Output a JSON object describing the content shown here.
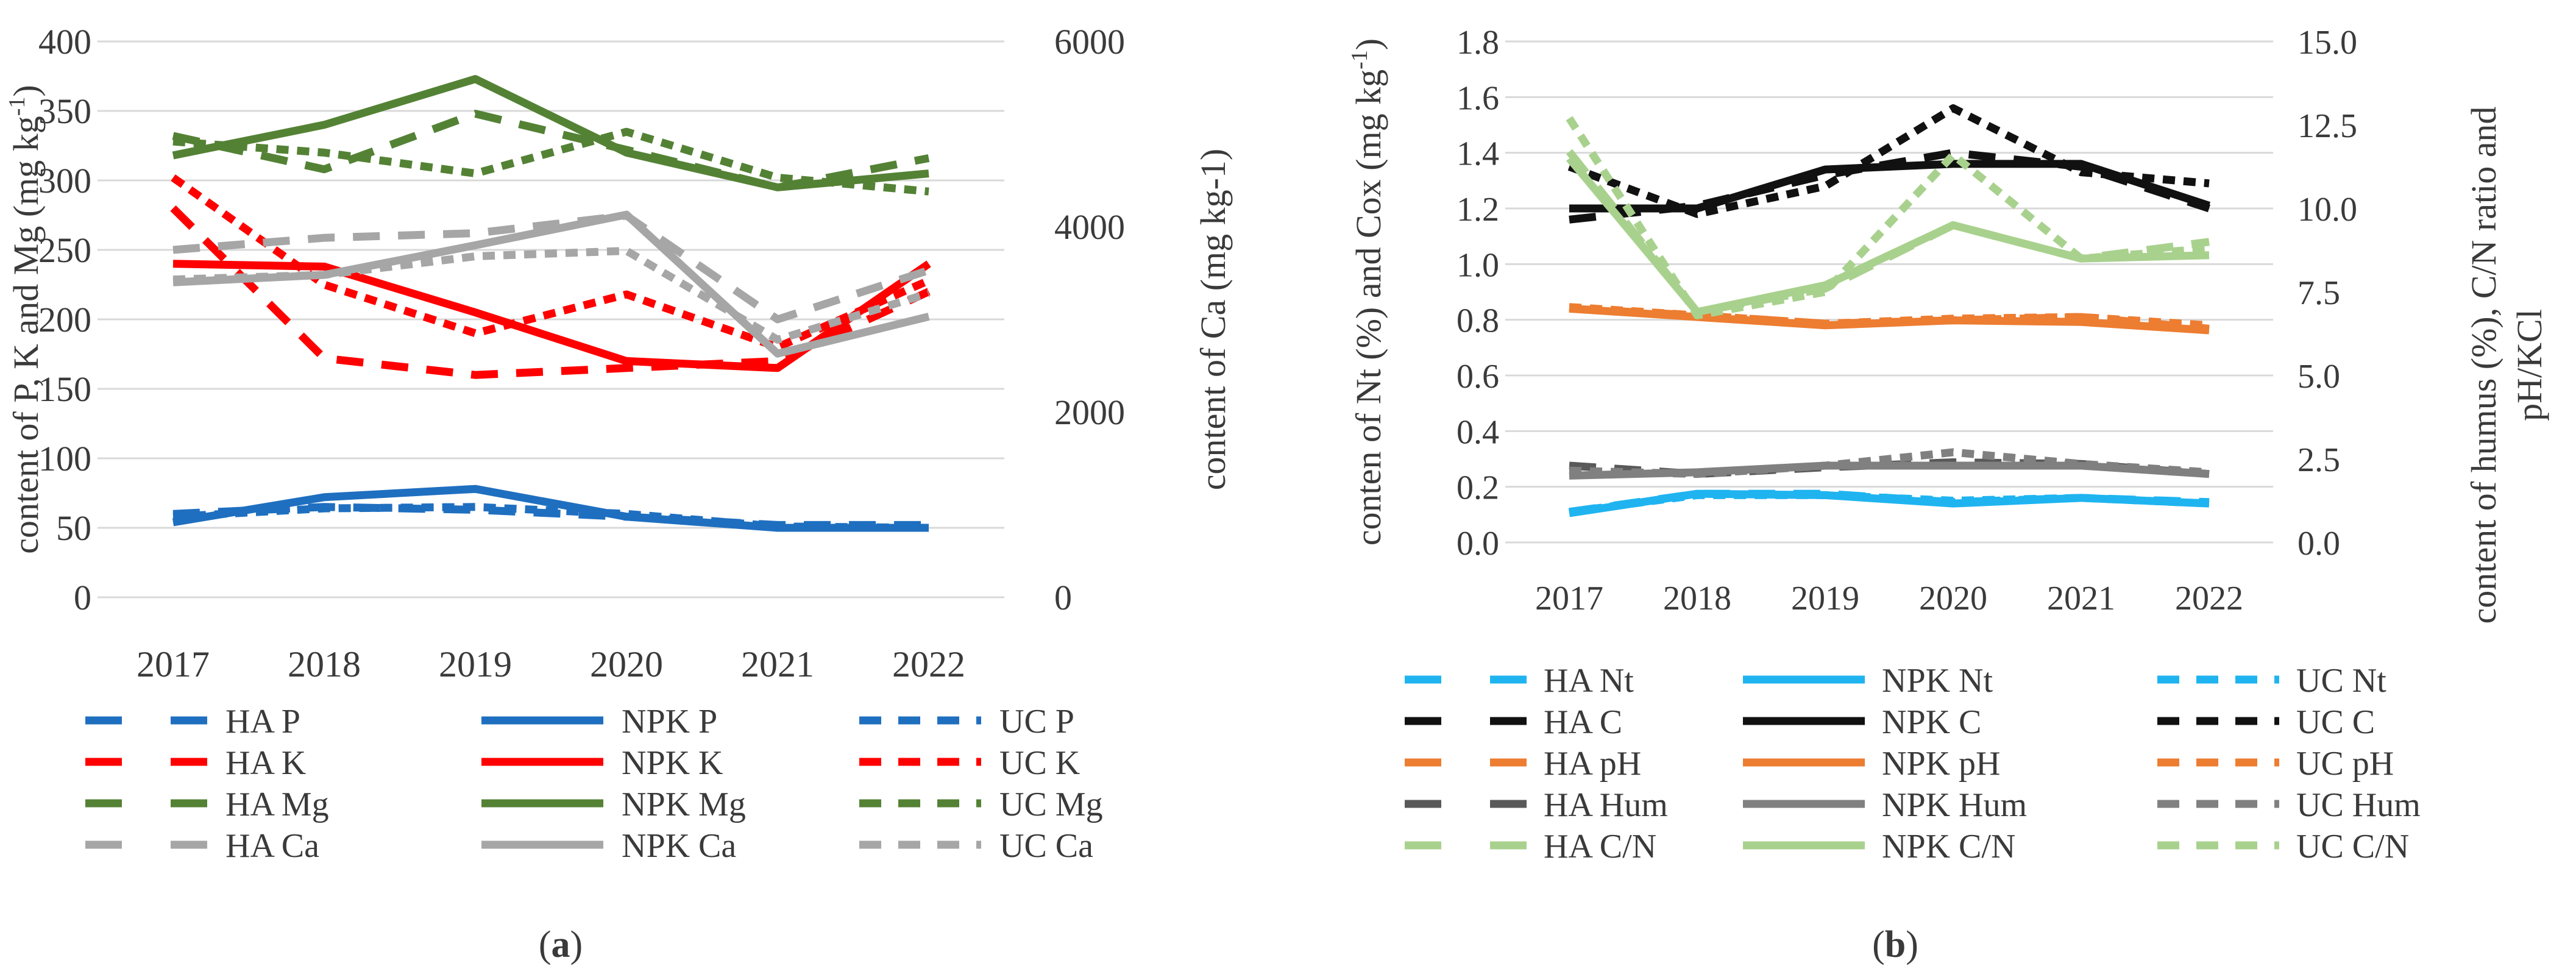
{
  "chart_data": [
    {
      "type": "line",
      "panel_label": "(a)",
      "categories": [
        "2017",
        "2018",
        "2019",
        "2020",
        "2021",
        "2022"
      ],
      "ylabel": "content of P, K and  Mg (mg kg-1)",
      "ylabel_base": "content of P, K and  Mg (mg kg",
      "ylabel_sup": "-1",
      "ylabel_end": ")",
      "y2label": "content of Ca (mg kg-1)",
      "ylim": [
        0,
        400
      ],
      "y_ticks": [
        "0",
        "50",
        "100",
        "150",
        "200",
        "250",
        "300",
        "350",
        "400"
      ],
      "y2lim": [
        0,
        6000
      ],
      "y2_ticks": [
        "0",
        "2000",
        "4000",
        "6000"
      ],
      "grid": true,
      "legend_position": "bottom",
      "series": [
        {
          "name": "HA P",
          "axis": "left",
          "color": "#1f6fc0",
          "dash": "long",
          "values": [
            60,
            65,
            63,
            58,
            52,
            52
          ]
        },
        {
          "name": "NPK P",
          "axis": "left",
          "color": "#1f6fc0",
          "dash": "solid",
          "values": [
            54,
            72,
            78,
            58,
            50,
            50
          ]
        },
        {
          "name": "UC P",
          "axis": "left",
          "color": "#1f6fc0",
          "dash": "short",
          "values": [
            58,
            64,
            65,
            60,
            51,
            50
          ]
        },
        {
          "name": "HA K",
          "axis": "left",
          "color": "#ff0000",
          "dash": "long",
          "values": [
            280,
            172,
            160,
            165,
            170,
            220
          ]
        },
        {
          "name": "NPK K",
          "axis": "left",
          "color": "#ff0000",
          "dash": "solid",
          "values": [
            240,
            238,
            205,
            170,
            165,
            240
          ]
        },
        {
          "name": "UC K",
          "axis": "left",
          "color": "#ff0000",
          "dash": "short",
          "values": [
            302,
            225,
            190,
            218,
            180,
            228
          ]
        },
        {
          "name": "HA Mg",
          "axis": "left",
          "color": "#548235",
          "dash": "long",
          "values": [
            332,
            308,
            348,
            322,
            295,
            316
          ]
        },
        {
          "name": "NPK Mg",
          "axis": "left",
          "color": "#548235",
          "dash": "solid",
          "values": [
            318,
            340,
            373,
            320,
            295,
            305
          ]
        },
        {
          "name": "UC Mg",
          "axis": "left",
          "color": "#548235",
          "dash": "short",
          "values": [
            328,
            320,
            305,
            335,
            302,
            292
          ]
        },
        {
          "name": "HA Ca",
          "axis": "right",
          "color": "#a6a6a6",
          "dash": "long",
          "values": [
            3750,
            3880,
            3930,
            4120,
            3000,
            3530
          ]
        },
        {
          "name": "NPK Ca",
          "axis": "right",
          "color": "#a6a6a6",
          "dash": "solid",
          "values": [
            3400,
            3480,
            3800,
            4130,
            2630,
            3030
          ]
        },
        {
          "name": "UC Ca",
          "axis": "right",
          "color": "#a6a6a6",
          "dash": "short",
          "values": [
            3430,
            3480,
            3680,
            3740,
            2780,
            3280
          ]
        }
      ]
    },
    {
      "type": "line",
      "panel_label": "(b)",
      "categories": [
        "2017",
        "2018",
        "2019",
        "2020",
        "2021",
        "2022"
      ],
      "ylabel": "conten of Nt (%) and Cox (mg kg-1)",
      "ylabel_base": "conten of Nt (%) and Cox (mg kg",
      "ylabel_sup": "-1",
      "ylabel_end": ")",
      "y2label_line1": "content of humus (%), C/N ratio and",
      "y2label_line2": "pH/KCl",
      "ylim": [
        0,
        1.8
      ],
      "y_ticks": [
        "0.0",
        "0.2",
        "0.4",
        "0.6",
        "0.8",
        "1.0",
        "1.2",
        "1.4",
        "1.6",
        "1.8"
      ],
      "y2lim": [
        0,
        15
      ],
      "y2_ticks": [
        "0.0",
        "2.5",
        "5.0",
        "7.5",
        "10.0",
        "12.5",
        "15.0"
      ],
      "grid": true,
      "legend_position": "bottom",
      "series": [
        {
          "name": "HA Nt",
          "axis": "left",
          "color": "#1fb4f0",
          "dash": "long",
          "values": [
            0.11,
            0.175,
            0.175,
            0.145,
            0.16,
            0.145
          ]
        },
        {
          "name": "NPK Nt",
          "axis": "left",
          "color": "#1fb4f0",
          "dash": "solid",
          "values": [
            0.105,
            0.175,
            0.17,
            0.14,
            0.16,
            0.14
          ]
        },
        {
          "name": "UC Nt",
          "axis": "left",
          "color": "#1fb4f0",
          "dash": "short",
          "values": [
            0.11,
            0.17,
            0.17,
            0.15,
            0.16,
            0.14
          ]
        },
        {
          "name": "HA C",
          "axis": "left",
          "color": "#111111",
          "dash": "long",
          "values": [
            1.16,
            1.21,
            1.32,
            1.4,
            1.35,
            1.2
          ]
        },
        {
          "name": "NPK C",
          "axis": "left",
          "color": "#111111",
          "dash": "solid",
          "values": [
            1.2,
            1.2,
            1.34,
            1.36,
            1.36,
            1.21
          ]
        },
        {
          "name": "UC C",
          "axis": "left",
          "color": "#111111",
          "dash": "short",
          "values": [
            1.35,
            1.18,
            1.28,
            1.56,
            1.33,
            1.29
          ]
        },
        {
          "name": "HA pH",
          "axis": "right",
          "color": "#ed7d31",
          "dash": "long",
          "values": [
            7.0,
            6.8,
            6.55,
            6.65,
            6.75,
            6.4
          ]
        },
        {
          "name": "NPK pH",
          "axis": "right",
          "color": "#ed7d31",
          "dash": "solid",
          "values": [
            7.0,
            6.75,
            6.5,
            6.65,
            6.6,
            6.35
          ]
        },
        {
          "name": "UC pH",
          "axis": "right",
          "color": "#ed7d31",
          "dash": "short",
          "values": [
            7.05,
            6.8,
            6.55,
            6.7,
            6.75,
            6.5
          ]
        },
        {
          "name": "HA Hum",
          "axis": "right",
          "color": "#595959",
          "dash": "long",
          "values": [
            2.3,
            2.05,
            2.25,
            2.4,
            2.35,
            2.05
          ]
        },
        {
          "name": "NPK Hum",
          "axis": "right",
          "color": "#808080",
          "dash": "solid",
          "values": [
            2.0,
            2.1,
            2.3,
            2.3,
            2.3,
            2.05
          ]
        },
        {
          "name": "UC Hum",
          "axis": "right",
          "color": "#808080",
          "dash": "short",
          "values": [
            2.15,
            2.05,
            2.3,
            2.7,
            2.35,
            2.1
          ]
        },
        {
          "name": "HA C/N",
          "axis": "right",
          "color": "#a9d18e",
          "dash": "long",
          "values": [
            11.7,
            6.9,
            7.6,
            9.5,
            8.5,
            9.0
          ]
        },
        {
          "name": "NPK C/N",
          "axis": "right",
          "color": "#a9d18e",
          "dash": "solid",
          "values": [
            11.5,
            6.9,
            7.7,
            9.5,
            8.5,
            8.6
          ]
        },
        {
          "name": "UC C/N",
          "axis": "right",
          "color": "#a9d18e",
          "dash": "short",
          "values": [
            12.7,
            6.8,
            7.5,
            11.6,
            8.5,
            8.8
          ]
        }
      ]
    }
  ]
}
